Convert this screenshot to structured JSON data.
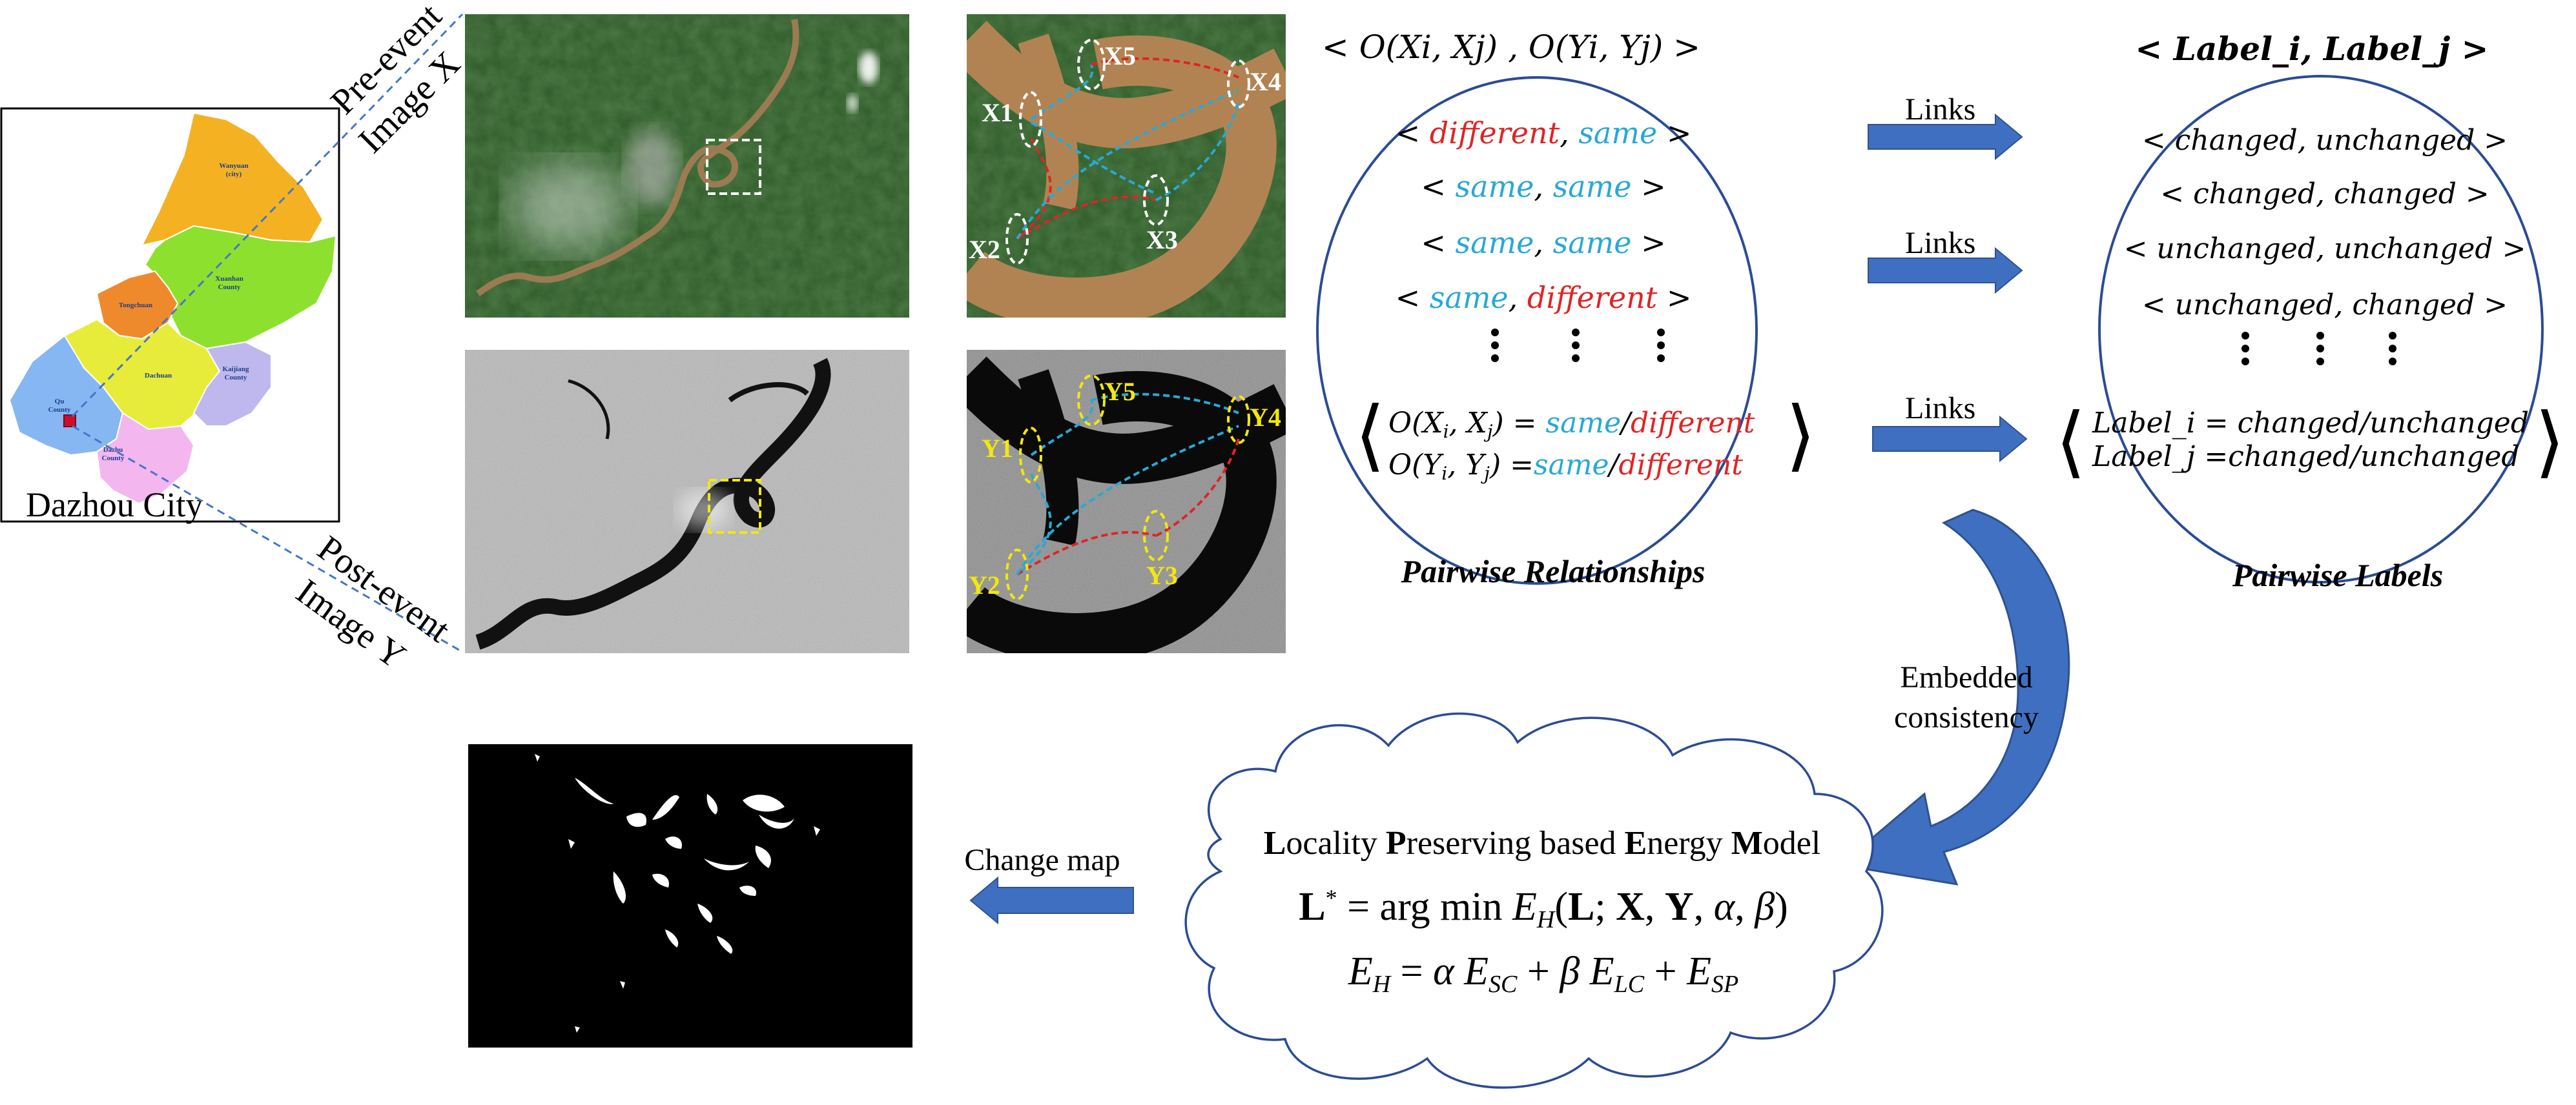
{
  "colors": {
    "same": "#29a8d6",
    "different": "#e02424",
    "arrow": "#3f6fc0",
    "ellipse": "#2b4c95",
    "map_wanyuan": "#f4b223",
    "map_xuanhan": "#8ee02e",
    "map_tongchuan": "#ef8a2c",
    "map_dachuan": "#e7ec3a",
    "map_kaijiang": "#bfb8ee",
    "map_qu": "#86b7f3",
    "map_dazhu": "#f3b6ef",
    "highlight_yellow": "#f3e80a"
  },
  "map": {
    "city_label": "Dazhou City",
    "regions": [
      {
        "key": "wanyuan",
        "label_l1": "Wanyuan",
        "label_l2": "(city)"
      },
      {
        "key": "xuanhan",
        "label_l1": "Xuanhan",
        "label_l2": "County"
      },
      {
        "key": "tongchuan",
        "label_l1": "Tongchuan",
        "label_l2": ""
      },
      {
        "key": "dachuan",
        "label_l1": "Dachuan",
        "label_l2": ""
      },
      {
        "key": "kaijiang",
        "label_l1": "Kaijiang",
        "label_l2": "County"
      },
      {
        "key": "qu",
        "label_l1": "Qu",
        "label_l2": "County"
      },
      {
        "key": "dazhu",
        "label_l1": "Dazhu",
        "label_l2": "County"
      }
    ]
  },
  "images": {
    "pre_event_l1": "Pre-event",
    "pre_event_l2": "Image X",
    "post_event_l1": "Post-event",
    "post_event_l2": "Image Y",
    "x_labels": [
      "X1",
      "X2",
      "X3",
      "X4",
      "X5"
    ],
    "y_labels": [
      "Y1",
      "Y2",
      "Y3",
      "Y4",
      "Y5"
    ]
  },
  "pairwise_relationships": {
    "header": "< O(Xi, Xj) , O(Yi, Yj) >",
    "rows": [
      {
        "first": "different",
        "second": "same"
      },
      {
        "first": "same",
        "second": "same"
      },
      {
        "first": "same",
        "second": "same"
      },
      {
        "first": "same",
        "second": "different"
      }
    ],
    "formula_line1": "O(Xi, Xj) = same/different",
    "formula_line2": "O(Yi, Yj) =same/different",
    "eq_value_same": "same",
    "eq_value_different": "different",
    "title": "Pairwise Relationships"
  },
  "pairwise_labels": {
    "header": "< Label_i, Label_j >",
    "rows": [
      "< changed, unchanged >",
      "< changed, changed >",
      "< unchanged, unchanged >",
      "< unchanged, changed >"
    ],
    "formula_line1": "Label_i = changed/unchanged",
    "formula_line2": "Label_j =changed/unchanged",
    "title": "Pairwise Labels"
  },
  "links_label": "Links",
  "embedded_label_l1": "Embedded",
  "embedded_label_l2": "consistency",
  "energy_model": {
    "title_parts": [
      {
        "b": "L",
        "r": "ocality "
      },
      {
        "b": "P",
        "r": "reserving based "
      },
      {
        "b": "E",
        "r": "nergy "
      },
      {
        "b": "M",
        "r": "odel"
      }
    ],
    "equation1": "L* = arg min EH(L; X, Y, α, β)",
    "equation2": "EH = α ESC + β ELC + ESP"
  },
  "change_map_label": "Change map"
}
